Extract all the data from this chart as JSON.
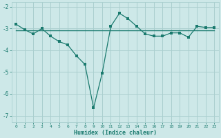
{
  "line1_x": [
    0,
    1,
    2,
    3,
    4,
    5,
    6,
    7,
    8,
    9,
    10,
    11,
    12,
    13,
    14,
    15,
    16,
    17,
    18,
    19,
    20,
    21,
    22,
    23
  ],
  "line1_y": [
    -2.8,
    -3.05,
    -3.25,
    -3.0,
    -3.35,
    -3.6,
    -3.75,
    -4.25,
    -4.65,
    -6.65,
    -5.05,
    -2.9,
    -2.3,
    -2.55,
    -2.9,
    -3.25,
    -3.35,
    -3.35,
    -3.2,
    -3.2,
    -3.4,
    -2.9,
    -2.95,
    -2.95
  ],
  "line2_x": [
    0,
    23
  ],
  "line2_y": [
    -3.1,
    -3.1
  ],
  "line_color": "#1a7a6e",
  "bg_color": "#cde8e8",
  "grid_color": "#aacfcf",
  "xlabel": "Humidex (Indice chaleur)",
  "ylim": [
    -7.3,
    -1.8
  ],
  "xlim": [
    -0.5,
    23.5
  ],
  "yticks": [
    -7,
    -6,
    -5,
    -4,
    -3,
    -2
  ],
  "xticks": [
    0,
    1,
    2,
    3,
    4,
    5,
    6,
    7,
    8,
    9,
    10,
    11,
    12,
    13,
    14,
    15,
    16,
    17,
    18,
    19,
    20,
    21,
    22,
    23
  ]
}
